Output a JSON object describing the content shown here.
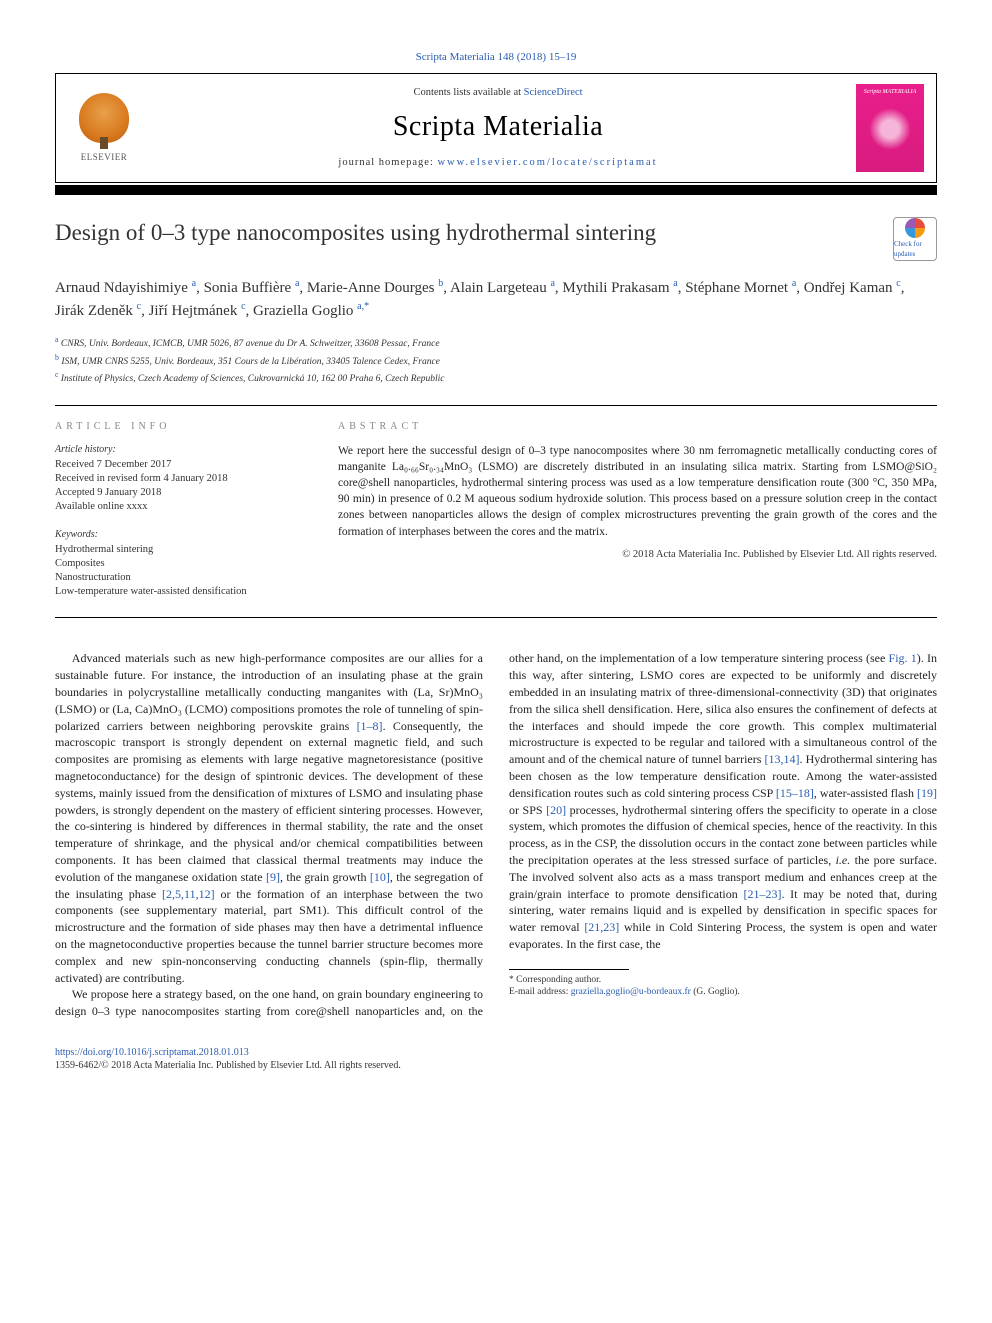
{
  "header": {
    "citation": "Scripta Materialia 148 (2018) 15–19",
    "contents_prefix": "Contents lists available at ",
    "contents_link": "ScienceDirect",
    "journal": "Scripta Materialia",
    "homepage_prefix": "journal homepage: ",
    "homepage_url": "www.elsevier.com/locate/scriptamat",
    "publisher": "ELSEVIER",
    "cover_label": "Scripta MATERIALIA"
  },
  "article": {
    "title": "Design of 0–3 type nanocomposites using hydrothermal sintering",
    "crossmark": "Check for updates",
    "authors_html": "Arnaud Ndayishimiye <sup>a</sup>, Sonia Buffière <sup>a</sup>, Marie-Anne Dourges <sup>b</sup>, Alain Largeteau <sup>a</sup>, Mythili Prakasam <sup>a</sup>, Stéphane Mornet <sup>a</sup>, Ondřej Kaman <sup>c</sup>, Jirák Zdeněk <sup>c</sup>, Jiří Hejtmánek <sup>c</sup>, Graziella Goglio <sup>a,*</sup>",
    "affiliations": [
      {
        "sup": "a",
        "text": "CNRS, Univ. Bordeaux, ICMCB, UMR 5026, 87 avenue du Dr A. Schweitzer, 33608 Pessac, France"
      },
      {
        "sup": "b",
        "text": "ISM, UMR CNRS 5255, Univ. Bordeaux, 351 Cours de la Libération, 33405 Talence Cedex, France"
      },
      {
        "sup": "c",
        "text": "Institute of Physics, Czech Academy of Sciences, Cukrovarnická 10, 162 00 Praha 6, Czech Republic"
      }
    ]
  },
  "info": {
    "heading": "article info",
    "history_head": "Article history:",
    "history": [
      "Received 7 December 2017",
      "Received in revised form 4 January 2018",
      "Accepted 9 January 2018",
      "Available online xxxx"
    ],
    "keywords_head": "Keywords:",
    "keywords": [
      "Hydrothermal sintering",
      "Composites",
      "Nanostructuration",
      "Low-temperature water-assisted densification"
    ]
  },
  "abstract": {
    "heading": "abstract",
    "text": "We report here the successful design of 0–3 type nanocomposites where 30 nm ferromagnetic metallically conducting cores of manganite La₀.₆₆Sr₀.₃₄MnO₃ (LSMO) are discretely distributed in an insulating silica matrix. Starting from LSMO@SiO₂ core@shell nanoparticles, hydrothermal sintering process was used as a low temperature densification route (300 °C, 350 MPa, 90 min) in presence of 0.2 M aqueous sodium hydroxide solution. This process based on a pressure solution creep in the contact zones between nanoparticles allows the design of complex microstructures preventing the grain growth of the cores and the formation of interphases between the cores and the matrix.",
    "copyright": "© 2018 Acta Materialia Inc. Published by Elsevier Ltd. All rights reserved."
  },
  "body": {
    "p1": "Advanced materials such as new high-performance composites are our allies for a sustainable future. For instance, the introduction of an insulating phase at the grain boundaries in polycrystalline metallically conducting manganites with (La, Sr)MnO₃ (LSMO) or (La, Ca)MnO₃ (LCMO) compositions promotes the role of tunneling of spin-polarized carriers between neighboring perovskite grains [1–8]. Consequently, the macroscopic transport is strongly dependent on external magnetic field, and such composites are promising as elements with large negative magnetoresistance (positive magnetoconductance) for the design of spintronic devices. The development of these systems, mainly issued from the densification of mixtures of LSMO and insulating phase powders, is strongly dependent on the mastery of efficient sintering processes. However, the co-sintering is hindered by differences in thermal stability, the rate and the onset temperature of shrinkage, and the physical and/or chemical compatibilities between components. It has been claimed that classical thermal treatments may induce the evolution of the manganese oxidation state [9], the grain growth [10], the segregation of the insulating phase [2,5,11,12] or the formation of an interphase between the two components (see supplementary material, part SM1). This difficult control of the microstructure and the formation of side phases may then have a detrimental influence on the magnetoconductive properties because the tunnel barrier structure becomes more complex and new spin-nonconserving conducting channels (spin-flip, thermally activated) are contributing.",
    "p2": "We propose here a strategy based, on the one hand, on grain boundary engineering to design 0–3 type nanocomposites starting from core@shell nanoparticles and, on the other hand, on the implementation of a low temperature sintering process (see Fig. 1). In this way, after sintering, LSMO cores are expected to be uniformly and discretely embedded in an insulating matrix of three-dimensional-connectivity (3D) that originates from the silica shell densification. Here, silica also ensures the confinement of defects at the interfaces and should impede the core growth. This complex multimaterial microstructure is expected to be regular and tailored with a simultaneous control of the amount and of the chemical nature of tunnel barriers [13,14]. Hydrothermal sintering has been chosen as the low temperature densification route. Among the water-assisted densification routes such as cold sintering process CSP [15–18], water-assisted flash [19] or SPS [20] processes, hydrothermal sintering offers the specificity to operate in a close system, which promotes the diffusion of chemical species, hence of the reactivity. In this process, as in the CSP, the dissolution occurs in the contact zone between particles while the precipitation operates at the less stressed surface of particles, i.e. the pore surface. The involved solvent also acts as a mass transport medium and enhances creep at the grain/grain interface to promote densification [21–23]. It may be noted that, during sintering, water remains liquid and is expelled by densification in specific spaces for water removal [21,23] while in Cold Sintering Process, the system is open and water evaporates. In the first case, the"
  },
  "footnote": {
    "marker": "* Corresponding author.",
    "email_label": "E-mail address: ",
    "email": "graziella.goglio@u-bordeaux.fr",
    "email_name": " (G. Goglio)."
  },
  "footer": {
    "doi": "https://doi.org/10.1016/j.scriptamat.2018.01.013",
    "issn_line": "1359-6462/© 2018 Acta Materialia Inc. Published by Elsevier Ltd. All rights reserved."
  },
  "colors": {
    "link": "#2a5db0",
    "text": "#222222",
    "cover_bg": "#e91e8c"
  }
}
